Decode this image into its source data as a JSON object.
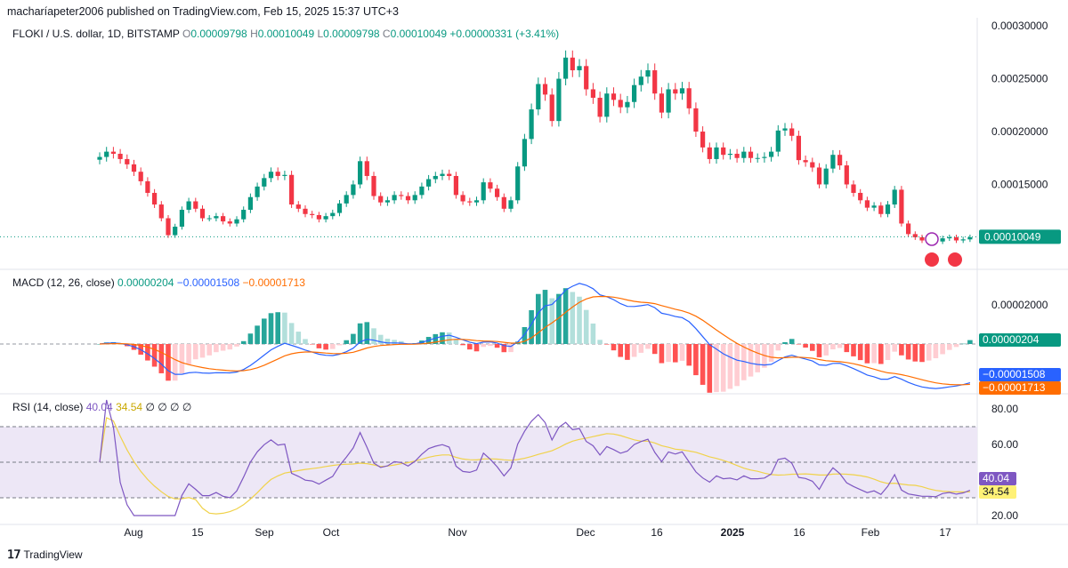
{
  "header": {
    "publisher": "macharíapeter2006 published on TradingView.com, Feb 15, 2025 15:37 UTC+3"
  },
  "colors": {
    "up": "#089981",
    "down": "#f23645",
    "macd": "#2962ff",
    "signal": "#ff6d00",
    "rsi": "#7e57c2",
    "rsi_ma": "#f0d24a",
    "rsi_band": "#ede7f6"
  },
  "main_legend": {
    "symbol": "FLOKI / U.S. dollar, 1D, BITSTAMP",
    "o_label": "O",
    "o": "0.00009798",
    "h_label": "H",
    "h": "0.00010049",
    "l_label": "L",
    "l": "0.00009798",
    "c_label": "C",
    "c": "0.00010049",
    "change": "+0.00000331 (+3.41%)"
  },
  "macd_legend": {
    "name": "MACD (12, 26, close)",
    "hist": "0.00000204",
    "macd": "−0.00001508",
    "signal": "−0.00001713"
  },
  "rsi_legend": {
    "name": "RSI (14, close)",
    "rsi": "40.04",
    "ma": "34.54",
    "extra": "∅ ∅ ∅ ∅"
  },
  "footer": {
    "brand": "TradingView"
  },
  "chart_data": [
    {
      "type": "candlestick",
      "title": "FLOKI / U.S. dollar, 1D, BITSTAMP",
      "y_ticks": [
        "0.00030000",
        "0.00025000",
        "0.00020000",
        "0.00015000"
      ],
      "ylim": [
        7.05e-05,
        0.000306
      ],
      "last_price_label": "0.00010049",
      "last_price": 0.00010049,
      "x_ticks": [
        "Aug",
        "15",
        "Sep",
        "Oct",
        "Nov",
        "Dec",
        "16",
        "2025",
        "16",
        "Feb",
        "17"
      ],
      "closes": [
        0.000176,
        0.000181,
        0.000179,
        0.000174,
        0.000169,
        0.000162,
        0.000153,
        0.000142,
        0.000131,
        0.000118,
        0.000102,
        0.00011,
        0.000126,
        0.000134,
        0.000127,
        0.000118,
        0.000118,
        0.00012,
        0.000115,
        0.000113,
        0.000117,
        0.000126,
        0.000138,
        0.000148,
        0.000156,
        0.000162,
        0.000158,
        0.000159,
        0.000131,
        0.000127,
        0.000122,
        0.000121,
        0.000117,
        0.00012,
        0.000123,
        0.000132,
        0.00014,
        0.00015,
        0.000172,
        0.000158,
        0.000139,
        0.000133,
        0.000135,
        0.00014,
        0.000139,
        0.000135,
        0.00014,
        0.000148,
        0.000155,
        0.000158,
        0.00016,
        0.000158,
        0.00014,
        0.000134,
        0.000133,
        0.000135,
        0.000152,
        0.000146,
        0.000138,
        0.000127,
        0.000135,
        0.000167,
        0.000193,
        0.000221,
        0.000245,
        0.000235,
        0.00021,
        0.00025,
        0.00027,
        0.000258,
        0.000262,
        0.00024,
        0.000232,
        0.000214,
        0.000236,
        0.00023,
        0.000223,
        0.000228,
        0.000244,
        0.000252,
        0.000258,
        0.000236,
        0.000218,
        0.00024,
        0.000236,
        0.000241,
        0.000222,
        0.0002,
        0.000185,
        0.000174,
        0.000185,
        0.000178,
        0.000179,
        0.000175,
        0.000181,
        0.000175,
        0.000175,
        0.000176,
        0.000181,
        0.000201,
        0.000203,
        0.000196,
        0.000173,
        0.000171,
        0.000166,
        0.00015,
        0.000165,
        0.000178,
        0.000168,
        0.00015,
        0.000142,
        0.000135,
        0.000128,
        0.00013,
        0.000122,
        0.000131,
        0.000145,
        0.000113,
        0.000103,
        0.0001,
        9.7e-05,
        9.7e-05,
        9.6e-05,
        9.9e-05,
        0.0001,
        9.7e-05,
        9.8e-05,
        0.0001
      ]
    },
    {
      "type": "macd",
      "title": "MACD (12, 26, close)",
      "y_ticks": [
        "0.00002000"
      ],
      "histogram_label": "0.00000204",
      "macd_label": "−0.00001508",
      "signal_label": "−0.00001713"
    },
    {
      "type": "rsi",
      "title": "RSI (14, close)",
      "y_ticks": [
        "80.00",
        "60.00",
        "20.00"
      ],
      "ylim": [
        16,
        88
      ],
      "bands": [
        70,
        50,
        30
      ],
      "rsi_label": "40.04",
      "ma_label": "34.54"
    }
  ]
}
